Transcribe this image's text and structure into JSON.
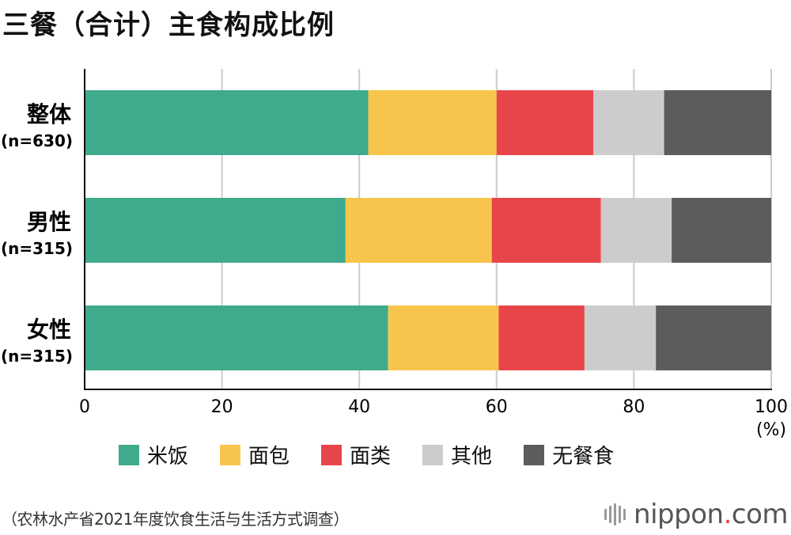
{
  "title": "三餐（合计）主食构成比例",
  "source": "（农林水产省2021年度饮食生活与生活方式调查）",
  "brand": {
    "name": "nippon",
    "dot": ".",
    "suffix": "com"
  },
  "chart_data": {
    "type": "bar",
    "orientation": "horizontal",
    "stacked": true,
    "categories": [
      {
        "name": "整体",
        "n": "(n=630)"
      },
      {
        "name": "男性",
        "n": "(n=315)"
      },
      {
        "name": "女性",
        "n": "(n=315)"
      }
    ],
    "series": [
      {
        "name": "米饭",
        "color": "#3faa8c",
        "values": [
          41.3,
          38.0,
          44.2
        ]
      },
      {
        "name": "面包",
        "color": "#f8c54c",
        "values": [
          18.7,
          21.3,
          16.1
        ]
      },
      {
        "name": "面类",
        "color": "#e8454a",
        "values": [
          14.1,
          15.9,
          12.5
        ]
      },
      {
        "name": "其他",
        "color": "#cccccc",
        "values": [
          10.3,
          10.3,
          10.4
        ]
      },
      {
        "name": "无餐食",
        "color": "#5c5c5c",
        "values": [
          15.6,
          14.5,
          16.8
        ]
      }
    ],
    "xlim": [
      0,
      100
    ],
    "xticks": [
      "0",
      "20",
      "40",
      "60",
      "80",
      "100"
    ],
    "xunit": "(%)",
    "grid": true,
    "legend": "bottom"
  }
}
